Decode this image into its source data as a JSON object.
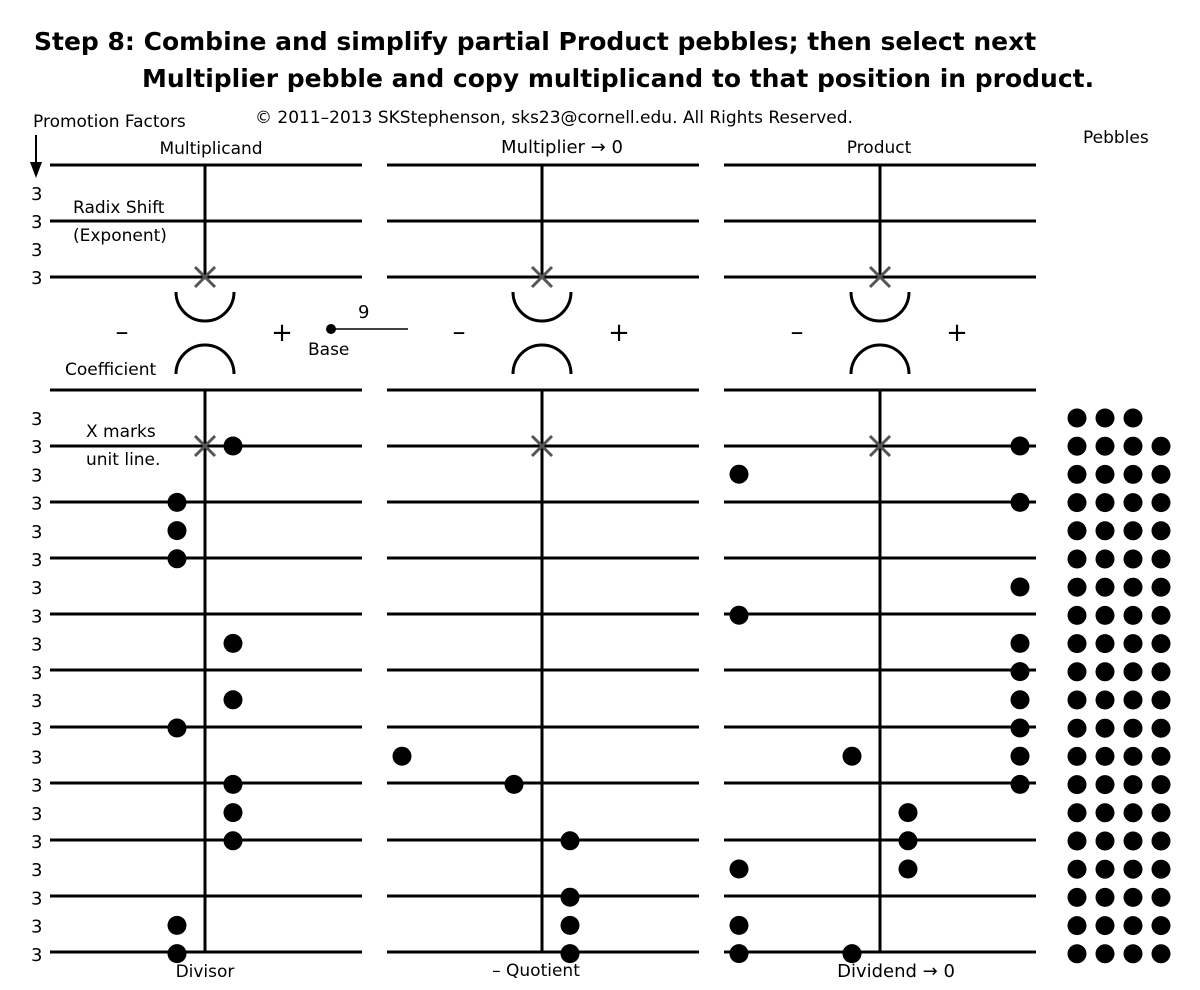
{
  "title": {
    "line1": "Step 8: Combine and simplify partial Product pebbles; then select next",
    "line2": "Multiplier pebble and copy multiplicand to that position in product."
  },
  "copyright": "© 2011–2013 SKStephenson, sks23@cornell.edu. All Rights Reserved.",
  "labels": {
    "promotion_factors": "Promotion Factors",
    "pebbles": "Pebbles",
    "radix_shift": "Radix Shift",
    "exponent": "(Exponent)",
    "coefficient": "Coefficient",
    "x_marks": "X marks",
    "unit_line": "unit line.",
    "base_label": "Base",
    "base_value": "9",
    "minus": "–",
    "plus": "+",
    "promotion_value": "3"
  },
  "boards": [
    {
      "top_label": "Multiplicand",
      "bottom_label": "Divisor"
    },
    {
      "top_label": "Multiplier → 0",
      "bottom_label": "– Quotient"
    },
    {
      "top_label": "Product",
      "bottom_label": "Dividend → 0"
    }
  ],
  "pebble_state": {
    "comment": "Pebble counts per gap/line position, indexed from the unit line downward (0 = unit line). Side: L = negative, R = positive.",
    "multiplicand": [
      {
        "pos": 0,
        "side": "R",
        "count": 1
      },
      {
        "pos": 2,
        "side": "L",
        "count": 1
      },
      {
        "pos": 3,
        "side": "L",
        "count": 1
      },
      {
        "pos": 4,
        "side": "L",
        "count": 1
      },
      {
        "pos": 7,
        "side": "R",
        "count": 1
      },
      {
        "pos": 9,
        "side": "R",
        "count": 1
      },
      {
        "pos": 10,
        "side": "L",
        "count": 1
      },
      {
        "pos": 12,
        "side": "R",
        "count": 1
      },
      {
        "pos": 13,
        "side": "R",
        "count": 1
      },
      {
        "pos": 14,
        "side": "R",
        "count": 1
      },
      {
        "pos": 17,
        "side": "L",
        "count": 1
      },
      {
        "pos": 18,
        "side": "L",
        "count": 1
      }
    ],
    "multiplier": [
      {
        "pos": 11,
        "side": "L",
        "count": 1
      },
      {
        "pos": 12,
        "side": "L",
        "count": 1
      },
      {
        "pos": 14,
        "side": "R",
        "count": 1
      },
      {
        "pos": 16,
        "side": "R",
        "count": 1
      },
      {
        "pos": 17,
        "side": "R",
        "count": 1
      },
      {
        "pos": 18,
        "side": "R",
        "count": 1
      }
    ],
    "product": [
      {
        "pos": 0,
        "side": "R",
        "count": 1
      },
      {
        "pos": 1,
        "side": "L",
        "count": 1
      },
      {
        "pos": 2,
        "side": "R",
        "count": 1
      },
      {
        "pos": 5,
        "side": "R",
        "count": 1
      },
      {
        "pos": 6,
        "side": "L",
        "count": 1
      },
      {
        "pos": 7,
        "side": "R",
        "count": 1
      },
      {
        "pos": 8,
        "side": "R",
        "count": 1
      },
      {
        "pos": 9,
        "side": "R",
        "count": 1
      },
      {
        "pos": 10,
        "side": "R",
        "count": 1
      },
      {
        "pos": 11,
        "side": "L",
        "count": 1
      },
      {
        "pos": 11,
        "side": "R",
        "count": 1
      },
      {
        "pos": 12,
        "side": "R",
        "count": 1
      },
      {
        "pos": 13,
        "side": "R",
        "count": 1
      },
      {
        "pos": 14,
        "side": "R",
        "count": 1
      },
      {
        "pos": 15,
        "side": "L",
        "count": 1
      },
      {
        "pos": 15,
        "side": "R",
        "count": 1
      },
      {
        "pos": 17,
        "side": "L",
        "count": 1
      },
      {
        "pos": 18,
        "side": "L",
        "count": 2
      }
    ],
    "reserve_pebbles": 79
  }
}
